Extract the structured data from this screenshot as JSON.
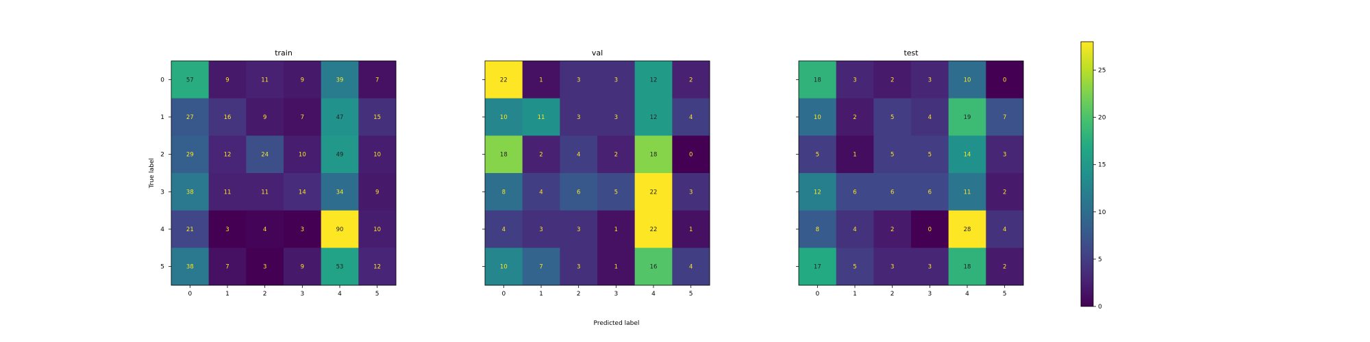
{
  "chart_data": [
    {
      "type": "heatmap",
      "title": "train",
      "x_categories": [
        "0",
        "1",
        "2",
        "3",
        "4",
        "5"
      ],
      "y_categories": [
        "0",
        "1",
        "2",
        "3",
        "4",
        "5"
      ],
      "ylabel": "True label",
      "values": [
        [
          57,
          9,
          11,
          9,
          39,
          7
        ],
        [
          27,
          16,
          9,
          7,
          47,
          15
        ],
        [
          29,
          12,
          24,
          10,
          49,
          10
        ],
        [
          38,
          11,
          11,
          14,
          34,
          9
        ],
        [
          21,
          3,
          4,
          3,
          90,
          10
        ],
        [
          38,
          7,
          3,
          9,
          53,
          12
        ]
      ]
    },
    {
      "type": "heatmap",
      "title": "val",
      "x_categories": [
        "0",
        "1",
        "2",
        "3",
        "4",
        "5"
      ],
      "y_categories": [
        "0",
        "1",
        "2",
        "3",
        "4",
        "5"
      ],
      "values": [
        [
          22,
          1,
          3,
          3,
          12,
          2
        ],
        [
          10,
          11,
          3,
          3,
          12,
          4
        ],
        [
          18,
          2,
          4,
          2,
          18,
          0
        ],
        [
          8,
          4,
          6,
          5,
          22,
          3
        ],
        [
          4,
          3,
          3,
          1,
          22,
          1
        ],
        [
          10,
          7,
          3,
          1,
          16,
          4
        ]
      ]
    },
    {
      "type": "heatmap",
      "title": "test",
      "x_categories": [
        "0",
        "1",
        "2",
        "3",
        "4",
        "5"
      ],
      "y_categories": [
        "0",
        "1",
        "2",
        "3",
        "4",
        "5"
      ],
      "values": [
        [
          18,
          3,
          2,
          3,
          10,
          0
        ],
        [
          10,
          2,
          5,
          4,
          19,
          7
        ],
        [
          5,
          1,
          5,
          5,
          14,
          3
        ],
        [
          12,
          6,
          6,
          6,
          11,
          2
        ],
        [
          8,
          4,
          2,
          0,
          28,
          4
        ],
        [
          17,
          5,
          3,
          3,
          18,
          2
        ]
      ]
    }
  ],
  "xlabel": "Predicted label",
  "colorbar": {
    "ticks": [
      "0",
      "5",
      "10",
      "15",
      "20",
      "25"
    ],
    "range": [
      0,
      28
    ],
    "colormap": "viridis"
  }
}
